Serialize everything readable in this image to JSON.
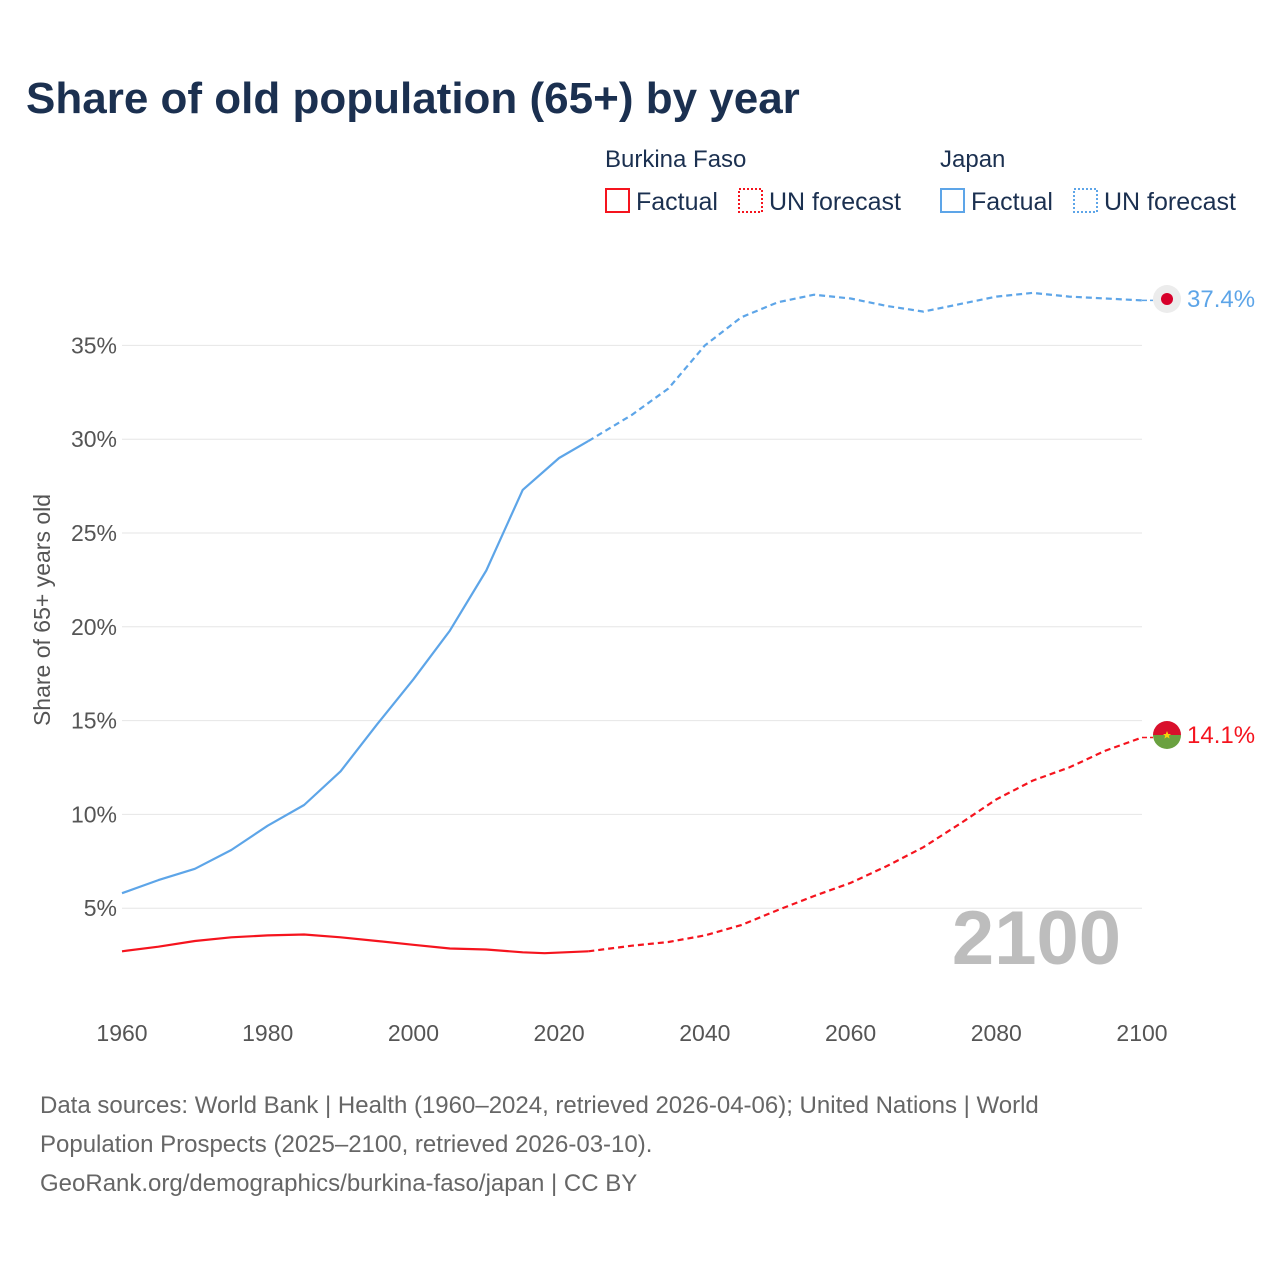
{
  "chart_data": {
    "type": "line",
    "title": "Share of old population (65+) by year",
    "xlabel": "",
    "ylabel": "Share of 65+ years old",
    "xlim": [
      1960,
      2100
    ],
    "ylim": [
      0,
      37.5
    ],
    "x_ticks": [
      "1960",
      "1980",
      "2000",
      "2020",
      "2040",
      "2060",
      "2080",
      "2100"
    ],
    "y_ticks": [
      {
        "v": 5,
        "label": "5%"
      },
      {
        "v": 10,
        "label": "10%"
      },
      {
        "v": 15,
        "label": "15%"
      },
      {
        "v": 20,
        "label": "20%"
      },
      {
        "v": 25,
        "label": "25%"
      },
      {
        "v": 30,
        "label": "30%"
      },
      {
        "v": 35,
        "label": "35%"
      }
    ],
    "grid": true,
    "current_year": "2100",
    "forecast_start": 2024,
    "legend": {
      "placement": "top-right",
      "groups": [
        {
          "name": "Burkina Faso",
          "factual": "Factual",
          "forecast": "UN forecast",
          "color": "#f5141e"
        },
        {
          "name": "Japan",
          "factual": "Factual",
          "forecast": "UN forecast",
          "color": "#5da5e8"
        }
      ]
    },
    "series": [
      {
        "name": "Japan",
        "color": "#5da5e8",
        "end_label": "37.4%",
        "flag": "japan-flag",
        "x": [
          1960,
          1965,
          1970,
          1975,
          1980,
          1985,
          1990,
          1995,
          2000,
          2005,
          2010,
          2015,
          2020,
          2024,
          2030,
          2035,
          2040,
          2045,
          2050,
          2055,
          2060,
          2065,
          2070,
          2075,
          2080,
          2085,
          2090,
          2095,
          2100
        ],
        "y": [
          5.8,
          6.5,
          7.1,
          8.1,
          9.4,
          10.5,
          12.3,
          14.8,
          17.2,
          19.8,
          23.0,
          27.3,
          29.0,
          29.9,
          31.3,
          32.7,
          35.0,
          36.5,
          37.3,
          37.7,
          37.5,
          37.1,
          36.8,
          37.2,
          37.6,
          37.8,
          37.6,
          37.5,
          37.4
        ]
      },
      {
        "name": "Burkina Faso",
        "color": "#f5141e",
        "end_label": "14.1%",
        "flag": "burkina-faso-flag",
        "x": [
          1960,
          1965,
          1970,
          1975,
          1980,
          1985,
          1990,
          1995,
          2000,
          2005,
          2010,
          2015,
          2018,
          2024,
          2030,
          2035,
          2040,
          2045,
          2050,
          2055,
          2060,
          2065,
          2070,
          2075,
          2080,
          2085,
          2090,
          2095,
          2100
        ],
        "y": [
          2.7,
          2.95,
          3.25,
          3.45,
          3.55,
          3.6,
          3.45,
          3.25,
          3.05,
          2.85,
          2.8,
          2.65,
          2.6,
          2.7,
          3.0,
          3.2,
          3.55,
          4.1,
          4.9,
          5.65,
          6.35,
          7.25,
          8.25,
          9.5,
          10.8,
          11.8,
          12.5,
          13.4,
          14.1
        ]
      }
    ]
  },
  "footer": {
    "line1": "Data sources: World Bank | Health (1960–2024, retrieved 2026-04-06); United Nations | World",
    "line2": "Population Prospects (2025–2100, retrieved 2026-03-10).",
    "line3": "GeoRank.org/demographics/burkina-faso/japan | CC BY"
  }
}
